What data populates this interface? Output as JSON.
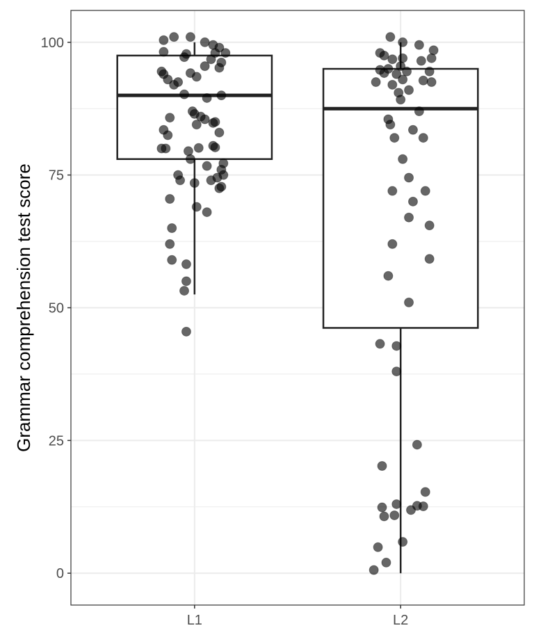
{
  "chart_data": {
    "type": "box",
    "title": "",
    "xlabel": "",
    "ylabel": "Grammar comprehension test score",
    "categories": [
      "L1",
      "L2"
    ],
    "ylim": [
      -6,
      106
    ],
    "yticks": [
      0,
      25,
      50,
      75,
      100
    ],
    "grid": true,
    "colors": {
      "points": "#000000",
      "point_opacity": 0.6,
      "box_stroke": "#222222",
      "grid": "#ebebeb"
    },
    "boxes": [
      {
        "category": "L1",
        "min": 52.5,
        "q1": 78,
        "median": 90,
        "q3": 97.5,
        "max": 100,
        "outliers": [
          45.5
        ]
      },
      {
        "category": "L2",
        "min": 0,
        "q1": 46.2,
        "median": 87.5,
        "q3": 95,
        "max": 100,
        "outliers": []
      }
    ],
    "points": [
      {
        "category": "L1",
        "y": 100.4,
        "jitter": -0.15
      },
      {
        "category": "L1",
        "y": 101,
        "jitter": -0.1
      },
      {
        "category": "L1",
        "y": 101,
        "jitter": -0.02
      },
      {
        "category": "L1",
        "y": 100,
        "jitter": 0.05
      },
      {
        "category": "L1",
        "y": 99.5,
        "jitter": 0.09
      },
      {
        "category": "L1",
        "y": 99,
        "jitter": 0.12
      },
      {
        "category": "L1",
        "y": 98.2,
        "jitter": -0.15
      },
      {
        "category": "L1",
        "y": 97.8,
        "jitter": -0.04
      },
      {
        "category": "L1",
        "y": 98,
        "jitter": 0.1
      },
      {
        "category": "L1",
        "y": 98,
        "jitter": 0.15
      },
      {
        "category": "L1",
        "y": 97.2,
        "jitter": -0.05
      },
      {
        "category": "L1",
        "y": 96.8,
        "jitter": 0.08
      },
      {
        "category": "L1",
        "y": 96.2,
        "jitter": 0.13
      },
      {
        "category": "L1",
        "y": 95.5,
        "jitter": 0.05
      },
      {
        "category": "L1",
        "y": 95.2,
        "jitter": 0.12
      },
      {
        "category": "L1",
        "y": 94.5,
        "jitter": -0.16
      },
      {
        "category": "L1",
        "y": 94.2,
        "jitter": -0.02
      },
      {
        "category": "L1",
        "y": 94,
        "jitter": -0.15
      },
      {
        "category": "L1",
        "y": 93.5,
        "jitter": 0.01
      },
      {
        "category": "L1",
        "y": 93,
        "jitter": -0.13
      },
      {
        "category": "L1",
        "y": 92.5,
        "jitter": -0.08
      },
      {
        "category": "L1",
        "y": 92,
        "jitter": -0.1
      },
      {
        "category": "L1",
        "y": 90.2,
        "jitter": -0.05
      },
      {
        "category": "L1",
        "y": 90,
        "jitter": 0.13
      },
      {
        "category": "L1",
        "y": 89.5,
        "jitter": 0.06
      },
      {
        "category": "L1",
        "y": 87,
        "jitter": -0.01
      },
      {
        "category": "L1",
        "y": 86.5,
        "jitter": 0
      },
      {
        "category": "L1",
        "y": 86,
        "jitter": 0.03
      },
      {
        "category": "L1",
        "y": 85.8,
        "jitter": -0.12
      },
      {
        "category": "L1",
        "y": 85.5,
        "jitter": 0.05
      },
      {
        "category": "L1",
        "y": 85,
        "jitter": 0.1
      },
      {
        "category": "L1",
        "y": 84.5,
        "jitter": 0.01
      },
      {
        "category": "L1",
        "y": 84.8,
        "jitter": 0.09
      },
      {
        "category": "L1",
        "y": 83.5,
        "jitter": -0.15
      },
      {
        "category": "L1",
        "y": 83,
        "jitter": 0.12
      },
      {
        "category": "L1",
        "y": 82.5,
        "jitter": -0.13
      },
      {
        "category": "L1",
        "y": 80.5,
        "jitter": 0.09
      },
      {
        "category": "L1",
        "y": 80.2,
        "jitter": 0.1
      },
      {
        "category": "L1",
        "y": 80,
        "jitter": -0.16
      },
      {
        "category": "L1",
        "y": 80,
        "jitter": -0.14
      },
      {
        "category": "L1",
        "y": 80.1,
        "jitter": 0.02
      },
      {
        "category": "L1",
        "y": 79.5,
        "jitter": -0.03
      },
      {
        "category": "L1",
        "y": 78,
        "jitter": -0.02
      },
      {
        "category": "L1",
        "y": 77.2,
        "jitter": 0.14
      },
      {
        "category": "L1",
        "y": 76.7,
        "jitter": 0.06
      },
      {
        "category": "L1",
        "y": 76,
        "jitter": 0.13
      },
      {
        "category": "L1",
        "y": 75,
        "jitter": -0.08
      },
      {
        "category": "L1",
        "y": 75,
        "jitter": 0.14
      },
      {
        "category": "L1",
        "y": 74.5,
        "jitter": 0.11
      },
      {
        "category": "L1",
        "y": 74,
        "jitter": -0.07
      },
      {
        "category": "L1",
        "y": 74,
        "jitter": 0.08
      },
      {
        "category": "L1",
        "y": 73.5,
        "jitter": 0
      },
      {
        "category": "L1",
        "y": 72.5,
        "jitter": 0.12
      },
      {
        "category": "L1",
        "y": 72.8,
        "jitter": 0.13
      },
      {
        "category": "L1",
        "y": 70.5,
        "jitter": -0.12
      },
      {
        "category": "L1",
        "y": 69,
        "jitter": 0.01
      },
      {
        "category": "L1",
        "y": 68,
        "jitter": 0.06
      },
      {
        "category": "L1",
        "y": 65,
        "jitter": -0.11
      },
      {
        "category": "L1",
        "y": 62,
        "jitter": -0.12
      },
      {
        "category": "L1",
        "y": 59,
        "jitter": -0.11
      },
      {
        "category": "L1",
        "y": 58.2,
        "jitter": -0.04
      },
      {
        "category": "L1",
        "y": 55,
        "jitter": -0.04
      },
      {
        "category": "L1",
        "y": 53.2,
        "jitter": -0.05
      },
      {
        "category": "L1",
        "y": 45.5,
        "jitter": -0.04
      },
      {
        "category": "L2",
        "y": 101,
        "jitter": -0.05
      },
      {
        "category": "L2",
        "y": 100,
        "jitter": 0.01
      },
      {
        "category": "L2",
        "y": 99.5,
        "jitter": 0.09
      },
      {
        "category": "L2",
        "y": 98.5,
        "jitter": 0.16
      },
      {
        "category": "L2",
        "y": 98,
        "jitter": -0.1
      },
      {
        "category": "L2",
        "y": 97.5,
        "jitter": -0.08
      },
      {
        "category": "L2",
        "y": 97,
        "jitter": 0.01
      },
      {
        "category": "L2",
        "y": 97,
        "jitter": 0.15
      },
      {
        "category": "L2",
        "y": 96.8,
        "jitter": -0.04
      },
      {
        "category": "L2",
        "y": 96.5,
        "jitter": 0.1
      },
      {
        "category": "L2",
        "y": 95.5,
        "jitter": 0
      },
      {
        "category": "L2",
        "y": 95,
        "jitter": -0.06
      },
      {
        "category": "L2",
        "y": 94.8,
        "jitter": -0.1
      },
      {
        "category": "L2",
        "y": 94.5,
        "jitter": 0.03
      },
      {
        "category": "L2",
        "y": 94.5,
        "jitter": 0.14
      },
      {
        "category": "L2",
        "y": 94.2,
        "jitter": -0.08
      },
      {
        "category": "L2",
        "y": 94,
        "jitter": -0.02
      },
      {
        "category": "L2",
        "y": 93,
        "jitter": 0.01
      },
      {
        "category": "L2",
        "y": 92.8,
        "jitter": 0.11
      },
      {
        "category": "L2",
        "y": 92.5,
        "jitter": -0.12
      },
      {
        "category": "L2",
        "y": 92.5,
        "jitter": 0.15
      },
      {
        "category": "L2",
        "y": 92,
        "jitter": -0.04
      },
      {
        "category": "L2",
        "y": 91,
        "jitter": 0.04
      },
      {
        "category": "L2",
        "y": 90.5,
        "jitter": -0.01
      },
      {
        "category": "L2",
        "y": 89.2,
        "jitter": 0
      },
      {
        "category": "L2",
        "y": 87,
        "jitter": 0.09
      },
      {
        "category": "L2",
        "y": 85.5,
        "jitter": -0.06
      },
      {
        "category": "L2",
        "y": 84.5,
        "jitter": -0.05
      },
      {
        "category": "L2",
        "y": 83.5,
        "jitter": 0.06
      },
      {
        "category": "L2",
        "y": 82,
        "jitter": -0.03
      },
      {
        "category": "L2",
        "y": 82,
        "jitter": 0.11
      },
      {
        "category": "L2",
        "y": 78,
        "jitter": 0.01
      },
      {
        "category": "L2",
        "y": 74.5,
        "jitter": 0.04
      },
      {
        "category": "L2",
        "y": 72,
        "jitter": -0.04
      },
      {
        "category": "L2",
        "y": 72,
        "jitter": 0.12
      },
      {
        "category": "L2",
        "y": 70,
        "jitter": 0.06
      },
      {
        "category": "L2",
        "y": 67,
        "jitter": 0.04
      },
      {
        "category": "L2",
        "y": 65.5,
        "jitter": 0.14
      },
      {
        "category": "L2",
        "y": 62,
        "jitter": -0.04
      },
      {
        "category": "L2",
        "y": 59.2,
        "jitter": 0.14
      },
      {
        "category": "L2",
        "y": 56,
        "jitter": -0.06
      },
      {
        "category": "L2",
        "y": 51,
        "jitter": 0.04
      },
      {
        "category": "L2",
        "y": 43.2,
        "jitter": -0.1
      },
      {
        "category": "L2",
        "y": 42.8,
        "jitter": -0.02
      },
      {
        "category": "L2",
        "y": 38,
        "jitter": -0.02
      },
      {
        "category": "L2",
        "y": 24.2,
        "jitter": 0.08
      },
      {
        "category": "L2",
        "y": 20.2,
        "jitter": -0.09
      },
      {
        "category": "L2",
        "y": 15.3,
        "jitter": 0.12
      },
      {
        "category": "L2",
        "y": 13,
        "jitter": -0.02
      },
      {
        "category": "L2",
        "y": 12.7,
        "jitter": 0.08
      },
      {
        "category": "L2",
        "y": 12.6,
        "jitter": 0.11
      },
      {
        "category": "L2",
        "y": 12.4,
        "jitter": -0.09
      },
      {
        "category": "L2",
        "y": 11.9,
        "jitter": 0.05
      },
      {
        "category": "L2",
        "y": 10.9,
        "jitter": -0.03
      },
      {
        "category": "L2",
        "y": 10.7,
        "jitter": -0.08
      },
      {
        "category": "L2",
        "y": 5.9,
        "jitter": 0.01
      },
      {
        "category": "L2",
        "y": 4.9,
        "jitter": -0.11
      },
      {
        "category": "L2",
        "y": 2,
        "jitter": -0.07
      },
      {
        "category": "L2",
        "y": 0.6,
        "jitter": -0.13
      }
    ]
  }
}
